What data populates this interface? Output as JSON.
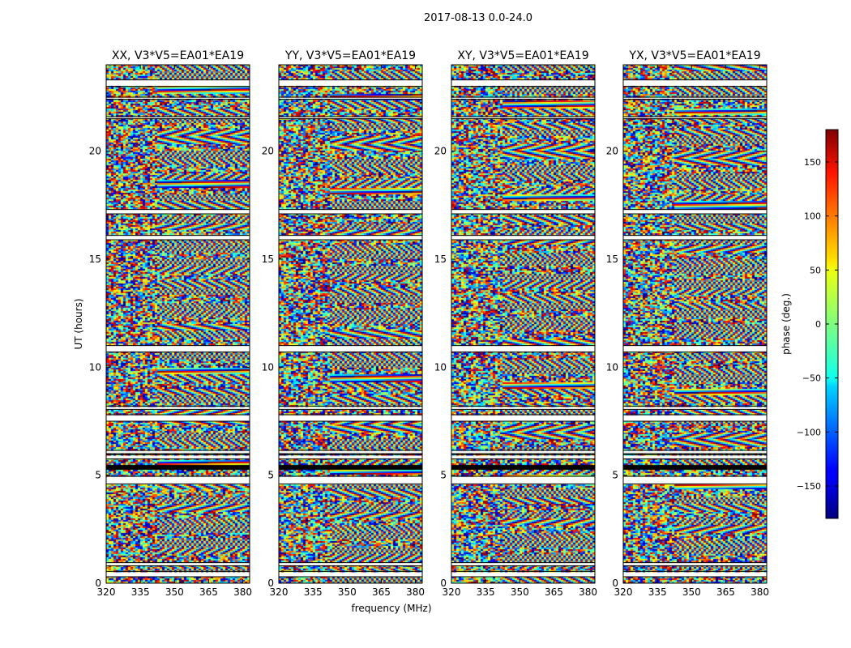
{
  "figure_title": "2017-08-13 0.0-24.0",
  "chart_data": {
    "type": "heatmap",
    "title": "2017-08-13 0.0-24.0",
    "xlabel": "frequency (MHz)",
    "ylabel": "UT (hours)",
    "x_ticks": [
      320,
      335,
      350,
      365,
      380
    ],
    "y_ticks": [
      0,
      5,
      10,
      15,
      20
    ],
    "xlim": [
      320,
      383
    ],
    "ylim": [
      0,
      24
    ],
    "panels": [
      {
        "title": "XX, V3*V5=EA01*EA19"
      },
      {
        "title": "YY, V3*V5=EA01*EA19"
      },
      {
        "title": "XY, V3*V5=EA01*EA19"
      },
      {
        "title": "YX, V3*V5=EA01*EA19"
      }
    ],
    "colorbar": {
      "label": "phase (deg.)",
      "range": [
        -180,
        180
      ],
      "ticks": [
        -150,
        -100,
        -50,
        0,
        50,
        100,
        150
      ],
      "colormap": "jet"
    },
    "gaps_hours": [
      [
        0.3,
        0.55
      ],
      [
        0.8,
        0.95
      ],
      [
        4.6,
        4.95
      ],
      [
        5.75,
        5.95
      ],
      [
        6.0,
        6.15
      ],
      [
        7.5,
        7.8
      ],
      [
        8.05,
        8.2
      ],
      [
        10.7,
        11.0
      ],
      [
        15.9,
        16.1
      ],
      [
        17.1,
        17.3
      ],
      [
        21.5,
        21.6
      ],
      [
        22.4,
        22.5
      ],
      [
        23.0,
        23.3
      ]
    ],
    "flagged_hours": [
      [
        5.25,
        5.45
      ]
    ]
  }
}
